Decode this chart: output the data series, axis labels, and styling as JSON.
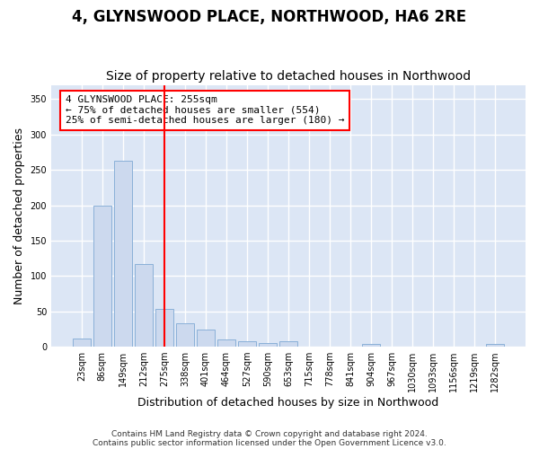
{
  "title": "4, GLYNSWOOD PLACE, NORTHWOOD, HA6 2RE",
  "subtitle": "Size of property relative to detached houses in Northwood",
  "xlabel": "Distribution of detached houses by size in Northwood",
  "ylabel": "Number of detached properties",
  "categories": [
    "23sqm",
    "86sqm",
    "149sqm",
    "212sqm",
    "275sqm",
    "338sqm",
    "401sqm",
    "464sqm",
    "527sqm",
    "590sqm",
    "653sqm",
    "715sqm",
    "778sqm",
    "841sqm",
    "904sqm",
    "967sqm",
    "1030sqm",
    "1093sqm",
    "1156sqm",
    "1219sqm",
    "1282sqm"
  ],
  "values": [
    12,
    200,
    263,
    117,
    54,
    33,
    24,
    10,
    8,
    5,
    8,
    0,
    0,
    0,
    4,
    0,
    0,
    0,
    0,
    0,
    4
  ],
  "bar_color": "#ccd9ee",
  "bar_edge_color": "#8ab0d8",
  "red_line_index": 4,
  "annotation_line1": "4 GLYNSWOOD PLACE: 255sqm",
  "annotation_line2": "← 75% of detached houses are smaller (554)",
  "annotation_line3": "25% of semi-detached houses are larger (180) →",
  "ylim": [
    0,
    370
  ],
  "yticks": [
    0,
    50,
    100,
    150,
    200,
    250,
    300,
    350
  ],
  "footer1": "Contains HM Land Registry data © Crown copyright and database right 2024.",
  "footer2": "Contains public sector information licensed under the Open Government Licence v3.0.",
  "fig_bg_color": "#ffffff",
  "plot_bg_color": "#dce6f5",
  "grid_color": "#ffffff",
  "title_fontsize": 12,
  "subtitle_fontsize": 10,
  "label_fontsize": 9,
  "tick_fontsize": 7,
  "annotation_fontsize": 8
}
